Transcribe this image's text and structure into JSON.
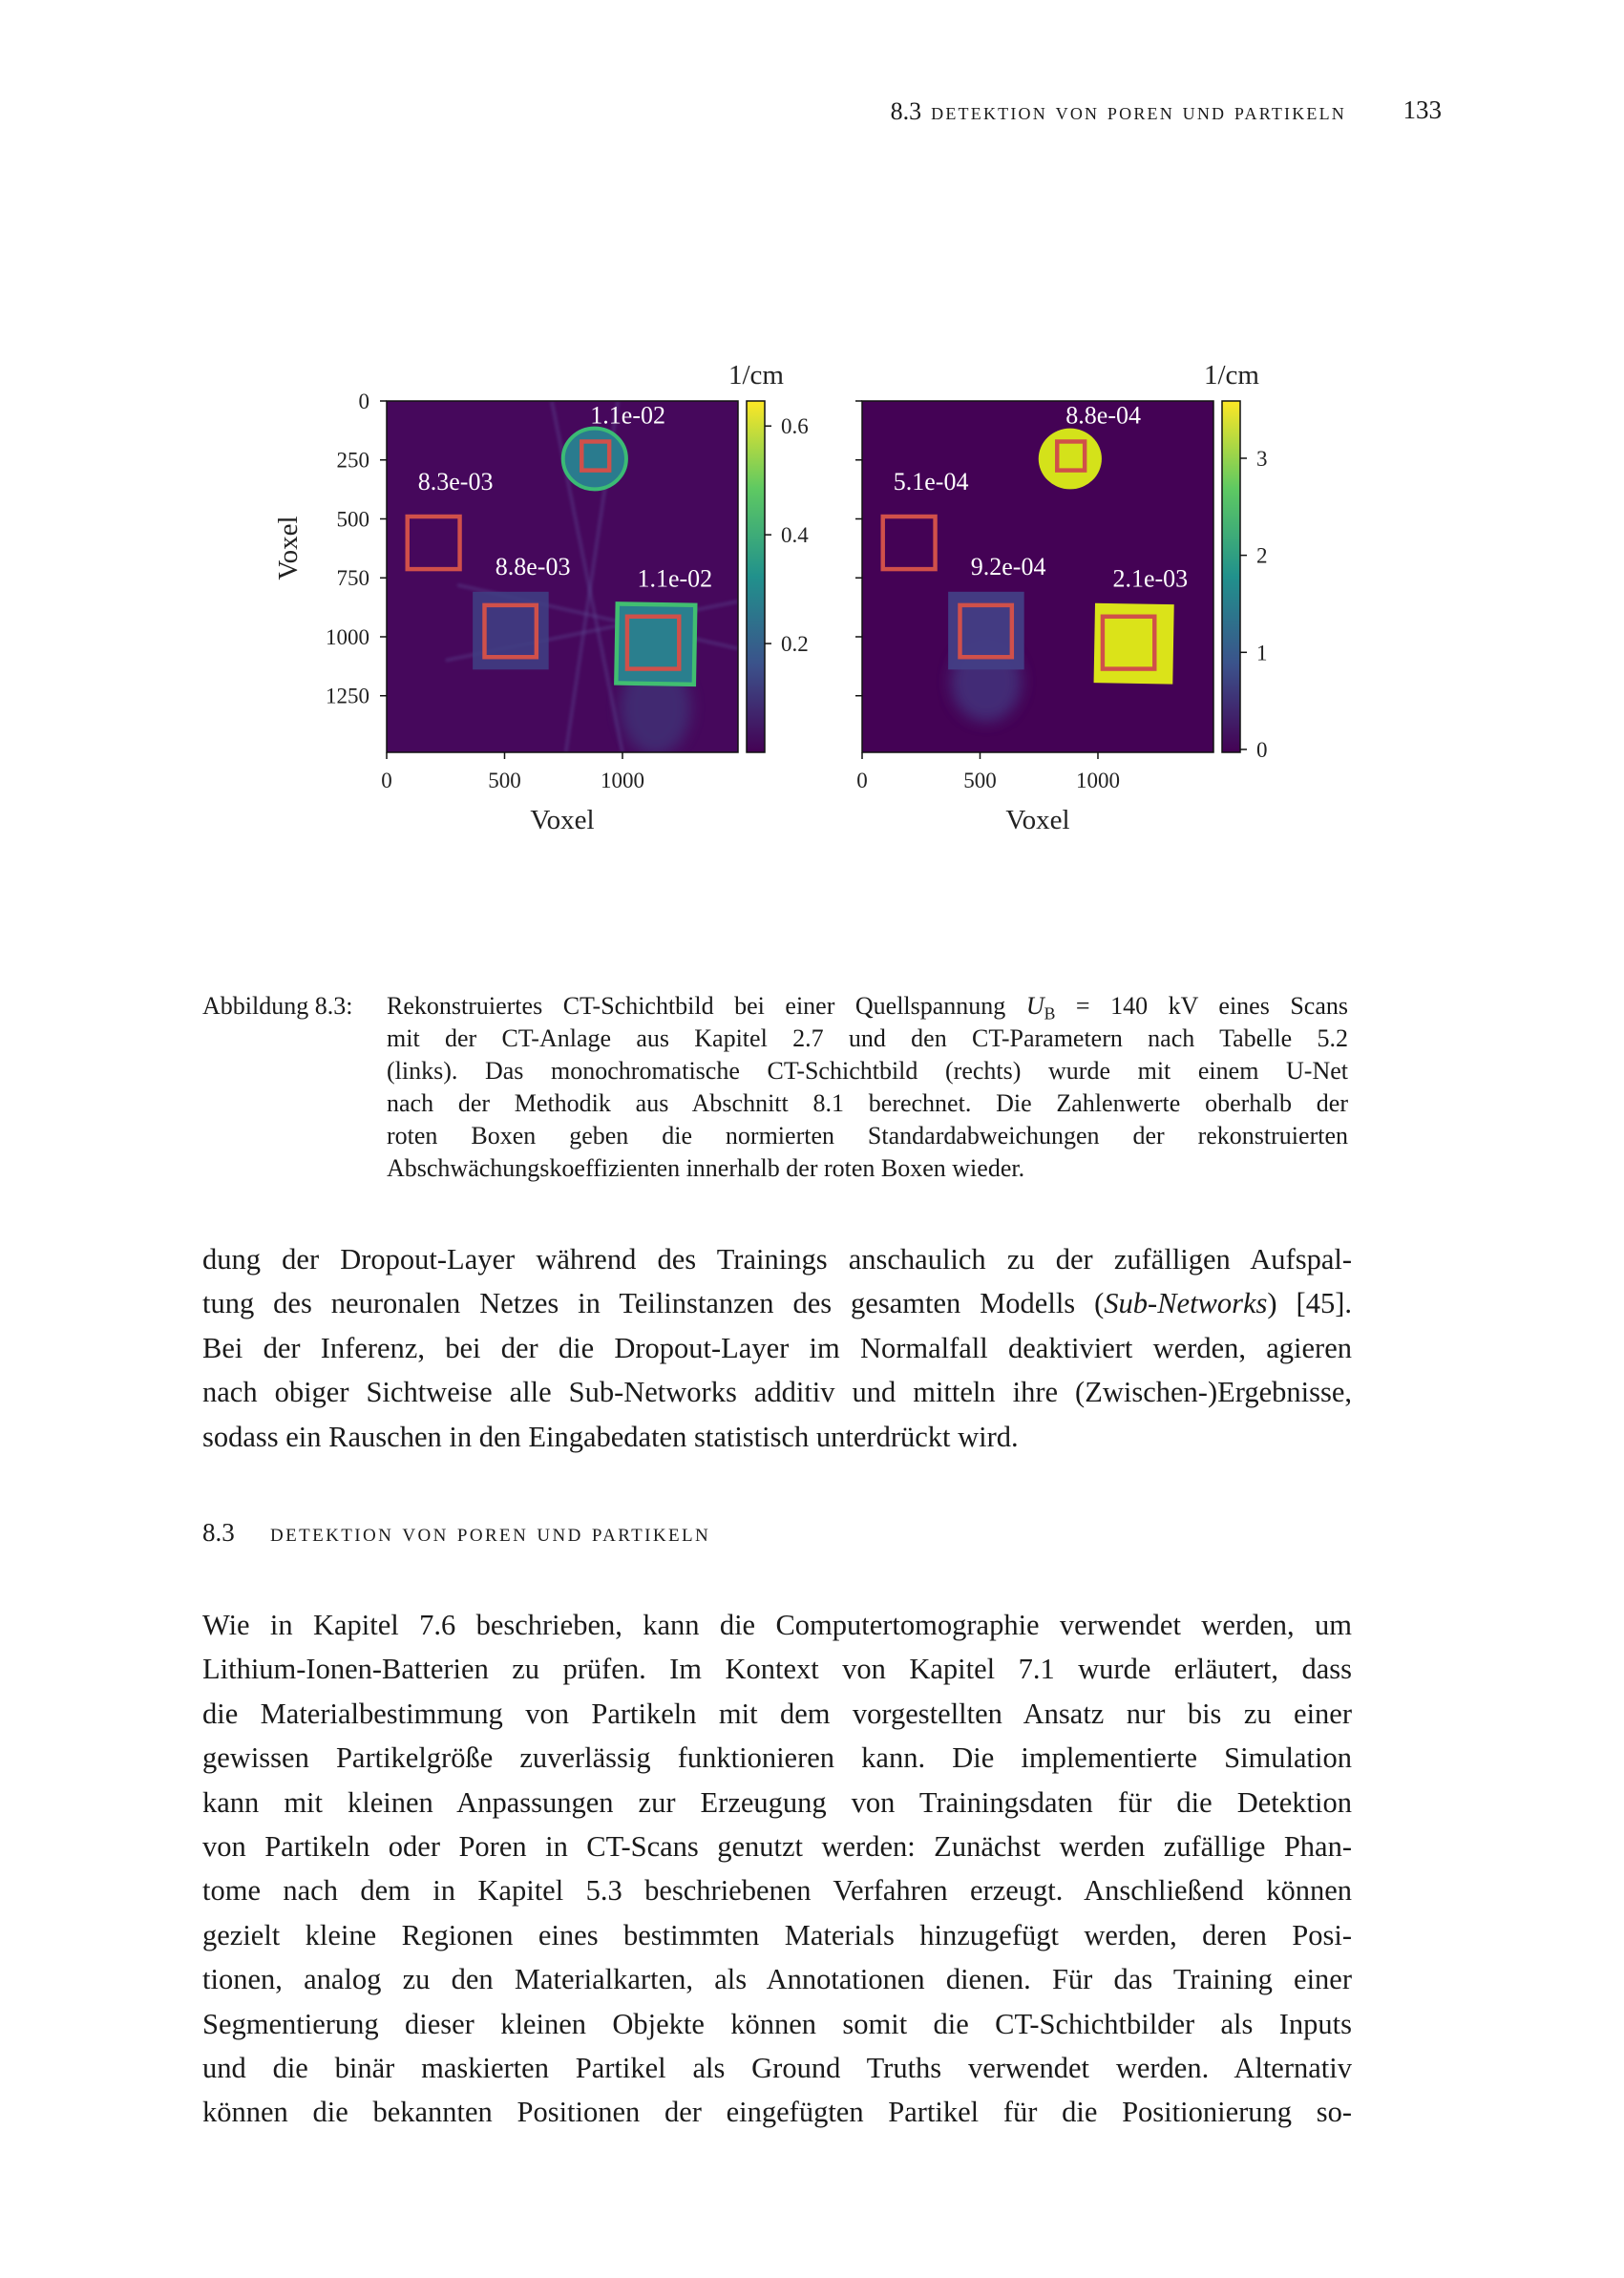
{
  "header": {
    "section_number": "8.3",
    "section_title": "Detektion von Poren und Partikeln",
    "page_number": "133"
  },
  "chart_data": [
    {
      "type": "heatmap",
      "panel": "left",
      "xlabel": "Voxel",
      "ylabel": "Voxel",
      "x_ticks": [
        "0",
        "500",
        "1000"
      ],
      "y_ticks": [
        "0",
        "250",
        "500",
        "750",
        "1000",
        "1250"
      ],
      "xlim": [
        0,
        1490
      ],
      "ylim": [
        1490,
        0
      ],
      "colormap": "viridis",
      "colorbar": {
        "label": "1/cm",
        "ticks": [
          "0.2",
          "0.4",
          "0.6"
        ],
        "range": [
          0,
          0.646
        ]
      },
      "box_labels": [
        "1.1e-02",
        "8.3e-03",
        "8.8e-03",
        "1.1e-02"
      ],
      "box_color": "#d0504a"
    },
    {
      "type": "heatmap",
      "panel": "right",
      "xlabel": "Voxel",
      "x_ticks": [
        "0",
        "500",
        "1000"
      ],
      "xlim": [
        0,
        1490
      ],
      "ylim": [
        1490,
        0
      ],
      "colormap": "viridis",
      "colorbar": {
        "label": "1/cm",
        "ticks": [
          "0",
          "1",
          "2",
          "3"
        ],
        "range": [
          -0.03,
          3.59
        ]
      },
      "box_labels": [
        "8.8e-04",
        "5.1e-04",
        "9.2e-04",
        "2.1e-03"
      ],
      "box_color": "#d0504a"
    }
  ],
  "caption": {
    "label": "Abbildung 8.3:",
    "lines": [
      [
        {
          "t": "Rekonstruiertes CT-Schichtbild bei einer Quellspannung ",
          "s": ""
        },
        {
          "t": "U",
          "s": "i"
        },
        {
          "t": "B",
          "s": "sub"
        },
        {
          "t": " = 140 kV eines Scans",
          "s": ""
        }
      ],
      "mit der CT-Anlage aus Kapitel 2.7 und den CT-Parametern nach Tabelle 5.2",
      "(links). Das monochromatische CT-Schichtbild (rechts) wurde mit einem U-Net",
      "nach der Methodik aus Abschnitt 8.1 berechnet. Die Zahlenwerte oberhalb der",
      "roten Boxen geben die normierten Standardabweichungen der rekonstruierten",
      "Abschwächungskoeffizienten innerhalb der roten Boxen wieder."
    ]
  },
  "paragraph1": [
    "dung der Dropout-Layer während des Trainings anschaulich zu der zufälligen Aufspal-",
    [
      {
        "t": "tung des neuronalen Netzes in Teilinstanzen des gesamten Modells (",
        "s": ""
      },
      {
        "t": "Sub-Networks",
        "s": "i"
      },
      {
        "t": ") [45].",
        "s": ""
      }
    ],
    "Bei der Inferenz, bei der die Dropout-Layer im Normalfall deaktiviert werden, agieren",
    "nach obiger Sichtweise alle Sub-Networks additiv und mitteln ihre (Zwischen-)Ergebnisse,",
    "sodass ein Rauschen in den Eingabedaten statistisch unterdrückt wird."
  ],
  "section": {
    "number": "8.3",
    "title": "Detektion von Poren und Partikeln"
  },
  "paragraph2": [
    "Wie in Kapitel 7.6 beschrieben, kann die Computertomographie verwendet werden, um",
    "Lithium-Ionen-Batterien zu prüfen. Im Kontext von Kapitel 7.1 wurde erläutert, dass",
    "die Materialbestimmung von Partikeln mit dem vorgestellten Ansatz nur bis zu einer",
    "gewissen Partikelgröße zuverlässig funktionieren kann. Die implementierte Simulation",
    "kann mit kleinen Anpassungen zur Erzeugung von Trainingsdaten für die Detektion",
    "von Partikeln oder Poren in CT-Scans genutzt werden: Zunächst werden zufällige Phan-",
    "tome nach dem in Kapitel 5.3 beschriebenen Verfahren erzeugt. Anschließend können",
    "gezielt kleine Regionen eines bestimmten Materials hinzugefügt werden, deren Posi-",
    "tionen, analog zu den Materialkarten, als Annotationen dienen. Für das Training einer",
    "Segmentierung dieser kleinen Objekte können somit die CT-Schichtbilder als Inputs",
    "und die binär maskierten Partikel als Ground Truths verwendet werden. Alternativ",
    "können die bekannten Positionen der eingefügten Partikel für die Positionierung so-"
  ]
}
